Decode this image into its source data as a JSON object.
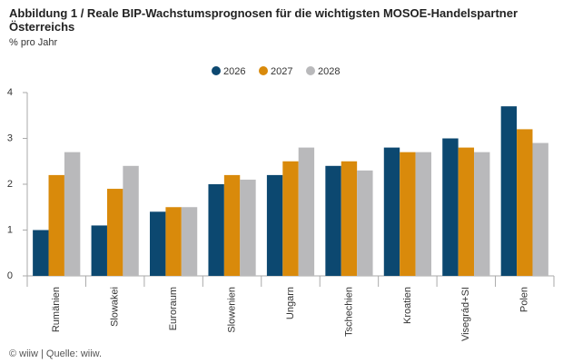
{
  "chart_data": {
    "type": "bar",
    "title": "Abbildung 1 / Reale BIP-Wachstumsprognosen für die wichtigsten MOSOE-Handelspartner Österreichs",
    "subtitle": "% pro Jahr",
    "footer": "© wiiw | Quelle: wiiw.",
    "categories": [
      "Rumänien",
      "Slowakei",
      "Euroraum",
      "Slowenien",
      "Ungarn",
      "Tschechien",
      "Kroatien",
      "Visegrád+SI",
      "Polen"
    ],
    "series": [
      {
        "name": "2026",
        "color": "#0c4870",
        "values": [
          1.0,
          1.1,
          1.4,
          2.0,
          2.2,
          2.4,
          2.8,
          3.0,
          3.7
        ]
      },
      {
        "name": "2027",
        "color": "#d98a0b",
        "values": [
          2.2,
          1.9,
          1.5,
          2.2,
          2.5,
          2.5,
          2.7,
          2.8,
          3.2
        ]
      },
      {
        "name": "2028",
        "color": "#b9b9bb",
        "values": [
          2.7,
          2.4,
          1.5,
          2.1,
          2.8,
          2.3,
          2.7,
          2.7,
          2.9
        ]
      }
    ],
    "ylim": [
      0,
      4
    ],
    "yticks": [
      0,
      1,
      2,
      3,
      4
    ],
    "grid": false,
    "legend": "top"
  }
}
